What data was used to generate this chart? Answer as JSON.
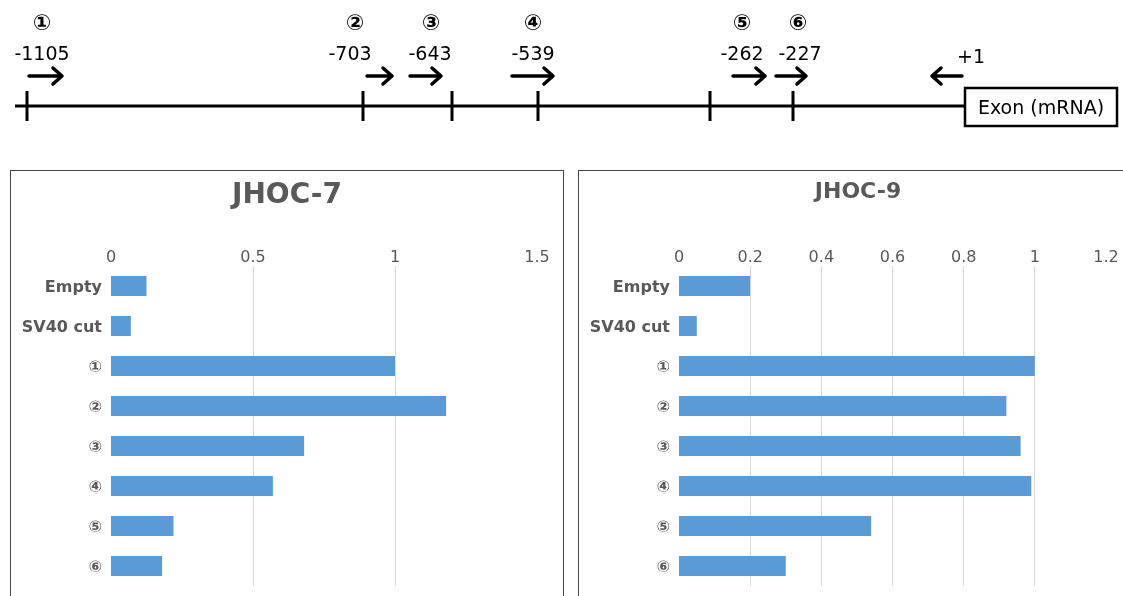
{
  "chart_data": [
    {
      "type": "other",
      "annotations": [
        "①",
        "-1105",
        "②",
        "-703",
        "③",
        "-643",
        "④",
        "-539",
        "⑤",
        "-262",
        "⑥",
        "-227",
        "+1",
        "Exon (mRNA)"
      ]
    },
    {
      "type": "bar",
      "orientation": "horizontal",
      "title": "JHOC-7",
      "categories": [
        "Empty",
        "SV40 cut",
        "①",
        "②",
        "③",
        "④",
        "⑤",
        "⑥"
      ],
      "values": [
        0.125,
        0.07,
        1.0,
        1.18,
        0.68,
        0.57,
        0.22,
        0.18
      ],
      "color": "#5b9bd5",
      "xlim": [
        0,
        1.5
      ],
      "xticks": [
        0,
        0.5,
        1,
        1.5
      ],
      "grid": "x"
    },
    {
      "type": "bar",
      "orientation": "horizontal",
      "title": "JHOC-9",
      "categories": [
        "Empty",
        "SV40 cut",
        "①",
        "②",
        "③",
        "④",
        "⑤",
        "⑥"
      ],
      "values": [
        0.2,
        0.05,
        1.0,
        0.92,
        0.96,
        0.99,
        0.54,
        0.3
      ],
      "color": "#5b9bd5",
      "xlim": [
        0,
        1.2
      ],
      "xticks": [
        0,
        0.2,
        0.4,
        0.6,
        0.8,
        1,
        1.2
      ],
      "grid": "x"
    }
  ]
}
